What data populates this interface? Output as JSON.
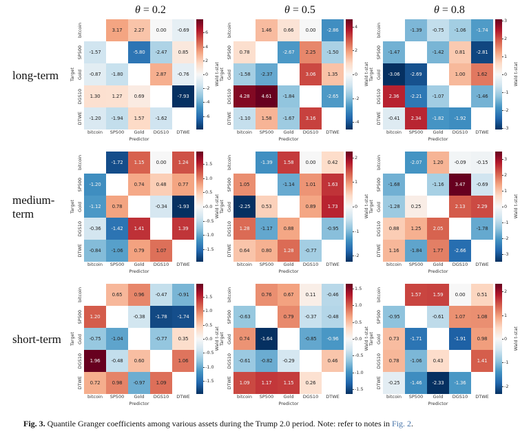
{
  "figure": {
    "caption_label": "Fig. 3.",
    "caption_text": "Quantile Granger coefficients among various assets during the Trump 2.0 period. Note: refer to notes in",
    "caption_link": "Fig. 2",
    "caption_period": "."
  },
  "row_labels": [
    "long-term",
    "medium-term",
    "short-term"
  ],
  "col_titles": [
    {
      "symbol": "θ",
      "rest": " = 0.2"
    },
    {
      "symbol": "θ",
      "rest": " = 0.5"
    },
    {
      "symbol": "θ",
      "rest": " = 0.8"
    }
  ],
  "axis": {
    "x_label": "Predictor",
    "y_label": "Target",
    "cbar_label": "Wald t-stat"
  },
  "assets": [
    "bitcoin",
    "SP500",
    "Gold",
    "DGS10",
    "DTWE"
  ],
  "colors": {
    "cmap_blue_to_red": [
      "#053061",
      "#2166ac",
      "#4393c3",
      "#92c5de",
      "#d1e5f0",
      "#f7f7f7",
      "#fddbc7",
      "#f4a582",
      "#d6604d",
      "#b2182b",
      "#67001f"
    ],
    "link_blue": "#4472a8",
    "dark_text": "#262626",
    "light_text": "#f2f2f2"
  },
  "chart_data": [
    {
      "type": "heatmap",
      "term": "long-term",
      "theta": "0.2",
      "vmax": 7.93,
      "cbar_ticks": [
        {
          "label": "6",
          "value": 6
        },
        {
          "label": "4",
          "value": 4
        },
        {
          "label": "2",
          "value": 2
        },
        {
          "label": "0",
          "value": 0
        },
        {
          "label": "-2",
          "value": -2
        },
        {
          "label": "-4",
          "value": -4
        },
        {
          "label": "-6",
          "value": -6
        }
      ],
      "values": [
        [
          null,
          3.17,
          2.27,
          0.0,
          -0.69
        ],
        [
          -1.57,
          null,
          -5.8,
          -2.47,
          0.85
        ],
        [
          -0.87,
          -1.8,
          null,
          2.87,
          -0.76
        ],
        [
          1.3,
          1.27,
          0.69,
          null,
          -7.93
        ],
        [
          -1.2,
          -1.94,
          1.57,
          -1.62,
          null
        ]
      ]
    },
    {
      "type": "heatmap",
      "term": "long-term",
      "theta": "0.5",
      "vmax": 4.61,
      "cbar_ticks": [
        {
          "label": "4",
          "value": 4
        },
        {
          "label": "2",
          "value": 2
        },
        {
          "label": "0",
          "value": 0
        },
        {
          "label": "-2",
          "value": -2
        },
        {
          "label": "-4",
          "value": -4
        }
      ],
      "values": [
        [
          null,
          1.46,
          0.66,
          0.0,
          -2.86
        ],
        [
          0.78,
          null,
          -2.67,
          2.25,
          -1.5
        ],
        [
          -1.58,
          -2.37,
          null,
          3.06,
          1.35
        ],
        [
          4.28,
          4.61,
          -1.84,
          null,
          -2.65
        ],
        [
          -1.1,
          1.58,
          -1.67,
          3.16,
          null
        ]
      ]
    },
    {
      "type": "heatmap",
      "term": "long-term",
      "theta": "0.8",
      "vmax": 3.06,
      "cbar_ticks": [
        {
          "label": "3",
          "value": 3
        },
        {
          "label": "2",
          "value": 2
        },
        {
          "label": "1",
          "value": 1
        },
        {
          "label": "0",
          "value": 0
        },
        {
          "label": "-1",
          "value": -1
        },
        {
          "label": "-2",
          "value": -2
        },
        {
          "label": "-3",
          "value": -3
        }
      ],
      "values": [
        [
          null,
          -1.39,
          -0.75,
          -1.06,
          -1.74
        ],
        [
          -1.47,
          null,
          -1.42,
          0.81,
          -2.81
        ],
        [
          -3.06,
          -2.69,
          null,
          1.0,
          1.62
        ],
        [
          2.36,
          -2.21,
          -1.07,
          null,
          -1.46
        ],
        [
          -0.41,
          2.34,
          -1.82,
          -1.92,
          null
        ]
      ]
    },
    {
      "type": "heatmap",
      "term": "medium-term",
      "theta": "0.2",
      "vmax": 1.93,
      "cbar_ticks": [
        {
          "label": "1.5",
          "value": 1.5
        },
        {
          "label": "1.0",
          "value": 1.0
        },
        {
          "label": "0.5",
          "value": 0.5
        },
        {
          "label": "0.0",
          "value": 0.0
        },
        {
          "label": "-0.5",
          "value": -0.5
        },
        {
          "label": "-1.0",
          "value": -1.0
        },
        {
          "label": "-1.5",
          "value": -1.5
        }
      ],
      "values": [
        [
          null,
          -1.72,
          1.15,
          0.0,
          1.24
        ],
        [
          -1.2,
          null,
          0.74,
          0.48,
          0.77
        ],
        [
          -1.12,
          0.78,
          null,
          -0.34,
          -1.93
        ],
        [
          -0.36,
          -1.42,
          1.41,
          null,
          1.39
        ],
        [
          -0.84,
          -1.06,
          0.79,
          1.07,
          null
        ]
      ]
    },
    {
      "type": "heatmap",
      "term": "medium-term",
      "theta": "0.5",
      "vmax": 2.25,
      "cbar_ticks": [
        {
          "label": "2",
          "value": 2
        },
        {
          "label": "1",
          "value": 1
        },
        {
          "label": "0",
          "value": 0
        },
        {
          "label": "-1",
          "value": -1
        },
        {
          "label": "-2",
          "value": -2
        }
      ],
      "values": [
        [
          null,
          -1.39,
          1.58,
          0.0,
          0.42
        ],
        [
          1.05,
          null,
          -1.14,
          1.01,
          1.63
        ],
        [
          -2.25,
          0.53,
          null,
          0.89,
          1.73
        ],
        [
          1.28,
          -1.17,
          0.88,
          null,
          -0.95
        ],
        [
          0.64,
          0.8,
          1.28,
          -0.77,
          null
        ]
      ]
    },
    {
      "type": "heatmap",
      "term": "medium-term",
      "theta": "0.8",
      "vmax": 3.47,
      "cbar_ticks": [
        {
          "label": "3",
          "value": 3
        },
        {
          "label": "2",
          "value": 2
        },
        {
          "label": "1",
          "value": 1
        },
        {
          "label": "0",
          "value": 0
        },
        {
          "label": "-1",
          "value": -1
        },
        {
          "label": "-2",
          "value": -2
        },
        {
          "label": "-3",
          "value": -3
        }
      ],
      "values": [
        [
          null,
          -2.07,
          1.2,
          -0.09,
          -0.15
        ],
        [
          -1.68,
          null,
          -1.16,
          3.47,
          -0.69
        ],
        [
          -1.28,
          0.25,
          null,
          2.13,
          2.29
        ],
        [
          0.88,
          1.25,
          2.05,
          null,
          -1.78
        ],
        [
          1.16,
          -1.84,
          1.77,
          -2.66,
          null
        ]
      ]
    },
    {
      "type": "heatmap",
      "term": "short-term",
      "theta": "0.2",
      "vmax": 1.96,
      "cbar_ticks": [
        {
          "label": "1.5",
          "value": 1.5
        },
        {
          "label": "1.0",
          "value": 1.0
        },
        {
          "label": "0.5",
          "value": 0.5
        },
        {
          "label": "0.0",
          "value": 0.0
        },
        {
          "label": "-0.5",
          "value": -0.5
        },
        {
          "label": "-1.0",
          "value": -1.0
        },
        {
          "label": "-1.5",
          "value": -1.5
        }
      ],
      "values": [
        [
          null,
          0.65,
          0.96,
          -0.47,
          -0.91
        ],
        [
          1.2,
          null,
          -0.38,
          -1.78,
          -1.74
        ],
        [
          -0.75,
          -1.04,
          null,
          -0.77,
          0.35
        ],
        [
          1.96,
          -0.48,
          0.6,
          null,
          1.06
        ],
        [
          0.72,
          0.98,
          -0.97,
          1.09,
          null
        ]
      ]
    },
    {
      "type": "heatmap",
      "term": "short-term",
      "theta": "0.5",
      "vmax": 1.64,
      "cbar_ticks": [
        {
          "label": "1.5",
          "value": 1.5
        },
        {
          "label": "1.0",
          "value": 1.0
        },
        {
          "label": "0.5",
          "value": 0.5
        },
        {
          "label": "0.0",
          "value": 0.0
        },
        {
          "label": "-0.5",
          "value": -0.5
        },
        {
          "label": "-1.0",
          "value": -1.0
        },
        {
          "label": "-1.5",
          "value": -1.5
        }
      ],
      "values": [
        [
          null,
          0.76,
          0.67,
          0.11,
          -0.46
        ],
        [
          -0.63,
          null,
          0.79,
          -0.37,
          -0.48
        ],
        [
          0.74,
          -1.64,
          null,
          -0.85,
          -0.96
        ],
        [
          -0.61,
          -0.82,
          -0.29,
          null,
          0.46
        ],
        [
          1.09,
          1.17,
          1.15,
          0.26,
          null
        ]
      ]
    },
    {
      "type": "heatmap",
      "term": "short-term",
      "theta": "0.8",
      "vmax": 2.33,
      "cbar_ticks": [
        {
          "label": "2",
          "value": 2
        },
        {
          "label": "1",
          "value": 1
        },
        {
          "label": "0",
          "value": 0
        },
        {
          "label": "-1",
          "value": -1
        },
        {
          "label": "-2",
          "value": -2
        }
      ],
      "values": [
        [
          null,
          1.57,
          1.59,
          0.0,
          0.51
        ],
        [
          -0.95,
          null,
          -0.61,
          1.07,
          1.08
        ],
        [
          0.73,
          -1.71,
          null,
          -1.91,
          0.98
        ],
        [
          0.78,
          -1.06,
          0.43,
          null,
          1.41
        ],
        [
          -0.25,
          -1.46,
          -2.33,
          -1.36,
          null
        ]
      ]
    }
  ]
}
